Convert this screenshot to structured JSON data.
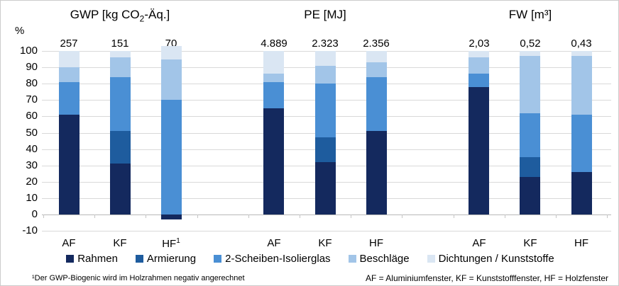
{
  "axis": {
    "unit_label": "%",
    "yticks": [
      100,
      90,
      80,
      70,
      60,
      50,
      40,
      30,
      20,
      10,
      0,
      -10
    ]
  },
  "footnotes": {
    "left": "¹Der GWP-Biogenic wird im Holzrahmen negativ angerechnet",
    "right": "AF = Aluminiumfenster, KF = Kunststofffenster, HF = Holzfenster"
  },
  "chart_data": {
    "type": "bar",
    "stacked": true,
    "title": "",
    "xlabel": "",
    "ylabel": "%",
    "ylim": [
      -10,
      100
    ],
    "grid": true,
    "legend_position": "bottom",
    "series_order_bottom_to_top": [
      "Rahmen",
      "Armierung",
      "2-Scheiben-Isolierglas",
      "Beschläge",
      "Dichtungen / Kunststoffe"
    ],
    "legend": [
      {
        "name": "Rahmen",
        "color": "#14295e"
      },
      {
        "name": "Armierung",
        "color": "#1e5c9e"
      },
      {
        "name": "2-Scheiben-Isolierglas",
        "color": "#4a8fd4"
      },
      {
        "name": "Beschläge",
        "color": "#a2c5e8"
      },
      {
        "name": "Dichtungen / Kunststoffe",
        "color": "#dae6f3"
      }
    ],
    "groups": [
      {
        "title": "GWP [kg CO₂-Äq.]",
        "title_parts": [
          {
            "text": "GWP [kg CO"
          },
          {
            "text": "2",
            "sub": true
          },
          {
            "text": "-Äq.]"
          }
        ],
        "bars": [
          {
            "category": "AF",
            "total_label": "257",
            "values": {
              "Rahmen": 61,
              "Armierung": 0,
              "2-Scheiben-Isolierglas": 20,
              "Beschläge": 9,
              "Dichtungen / Kunststoffe": 10
            }
          },
          {
            "category": "KF",
            "total_label": "151",
            "values": {
              "Rahmen": 31,
              "Armierung": 20,
              "2-Scheiben-Isolierglas": 33,
              "Beschläge": 12,
              "Dichtungen / Kunststoffe": 4
            }
          },
          {
            "category": "HF",
            "category_sup": "1",
            "total_label": "70",
            "values": {
              "Rahmen": -3,
              "Armierung": 0,
              "2-Scheiben-Isolierglas": 70,
              "Beschläge": 25,
              "Dichtungen / Kunststoffe": 8
            }
          }
        ]
      },
      {
        "title": "PE [MJ]",
        "title_parts": [
          {
            "text": "PE [MJ]"
          }
        ],
        "bars": [
          {
            "category": "AF",
            "total_label": "4.889",
            "values": {
              "Rahmen": 65,
              "Armierung": 0,
              "2-Scheiben-Isolierglas": 16,
              "Beschläge": 5,
              "Dichtungen / Kunststoffe": 14
            }
          },
          {
            "category": "KF",
            "total_label": "2.323",
            "values": {
              "Rahmen": 32,
              "Armierung": 15,
              "2-Scheiben-Isolierglas": 33,
              "Beschläge": 11,
              "Dichtungen / Kunststoffe": 9
            }
          },
          {
            "category": "HF",
            "total_label": "2.356",
            "values": {
              "Rahmen": 51,
              "Armierung": 0,
              "2-Scheiben-Isolierglas": 33,
              "Beschläge": 9,
              "Dichtungen / Kunststoffe": 7
            }
          }
        ]
      },
      {
        "title": "FW [m³]",
        "title_parts": [
          {
            "text": "FW [m³]"
          }
        ],
        "bars": [
          {
            "category": "AF",
            "total_label": "2,03",
            "values": {
              "Rahmen": 78,
              "Armierung": 0,
              "2-Scheiben-Isolierglas": 8,
              "Beschläge": 10,
              "Dichtungen / Kunststoffe": 4
            }
          },
          {
            "category": "KF",
            "total_label": "0,52",
            "values": {
              "Rahmen": 23,
              "Armierung": 12,
              "2-Scheiben-Isolierglas": 27,
              "Beschläge": 35,
              "Dichtungen / Kunststoffe": 3
            }
          },
          {
            "category": "HF",
            "total_label": "0,43",
            "values": {
              "Rahmen": 26,
              "Armierung": 0,
              "2-Scheiben-Isolierglas": 35,
              "Beschläge": 36,
              "Dichtungen / Kunststoffe": 3
            }
          }
        ]
      }
    ]
  }
}
